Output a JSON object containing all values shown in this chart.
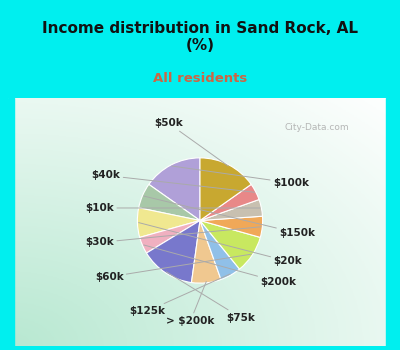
{
  "title": "Income distribution in Sand Rock, AL\n(%)",
  "subtitle": "All residents",
  "title_color": "#111111",
  "subtitle_color": "#cc6644",
  "background_top": "#00efef",
  "watermark": "City-Data.com",
  "slices": [
    {
      "label": "$100k",
      "value": 14,
      "color": "#b0a0d8"
    },
    {
      "label": "$150k",
      "value": 6,
      "color": "#a8c8a8"
    },
    {
      "label": "$20k",
      "value": 7,
      "color": "#f0e890"
    },
    {
      "label": "$200k",
      "value": 4,
      "color": "#f0b0c0"
    },
    {
      "label": "$75k",
      "value": 13,
      "color": "#7878cc"
    },
    {
      "label": "> $200k",
      "value": 7,
      "color": "#f0c890"
    },
    {
      "label": "$125k",
      "value": 5,
      "color": "#90c0e8"
    },
    {
      "label": "$60k",
      "value": 9,
      "color": "#c8e860"
    },
    {
      "label": "$30k",
      "value": 5,
      "color": "#f0a858"
    },
    {
      "label": "$10k",
      "value": 4,
      "color": "#c8c0b0"
    },
    {
      "label": "$40k",
      "value": 4,
      "color": "#e88888"
    },
    {
      "label": "$50k",
      "value": 14,
      "color": "#c8a830"
    }
  ],
  "label_fontsize": 7.5,
  "label_color": "#222222"
}
